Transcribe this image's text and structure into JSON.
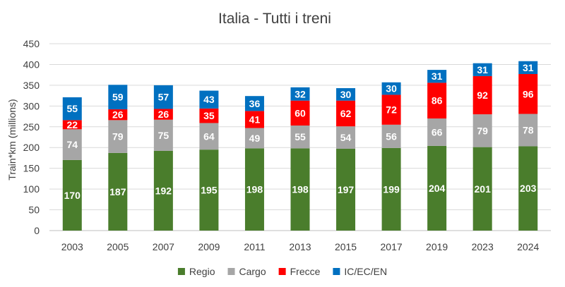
{
  "chart_data": {
    "type": "bar",
    "stacked": true,
    "title": "Italia - Tutti i treni",
    "xlabel": "",
    "ylabel": "Train*km (millions)",
    "ylim": [
      0,
      450
    ],
    "yticks": [
      0,
      50,
      100,
      150,
      200,
      250,
      300,
      350,
      400,
      450
    ],
    "grid": true,
    "legend_position": "bottom",
    "categories": [
      "2003",
      "2005",
      "2007",
      "2009",
      "2011",
      "2013",
      "2015",
      "2017",
      "2019",
      "2023",
      "2024"
    ],
    "series": [
      {
        "name": "Regio",
        "color": "#4a7d2c",
        "values": [
          170,
          187,
          192,
          195,
          198,
          198,
          197,
          199,
          204,
          201,
          203
        ]
      },
      {
        "name": "Cargo",
        "color": "#a6a6a6",
        "values": [
          74,
          79,
          75,
          64,
          49,
          55,
          54,
          56,
          66,
          79,
          78
        ]
      },
      {
        "name": "Frecce",
        "color": "#ff0000",
        "values": [
          22,
          26,
          26,
          35,
          41,
          60,
          62,
          72,
          86,
          92,
          96
        ]
      },
      {
        "name": "IC/EC/EN",
        "color": "#0070c0",
        "values": [
          55,
          59,
          57,
          43,
          36,
          32,
          30,
          30,
          31,
          31,
          31
        ]
      }
    ]
  }
}
